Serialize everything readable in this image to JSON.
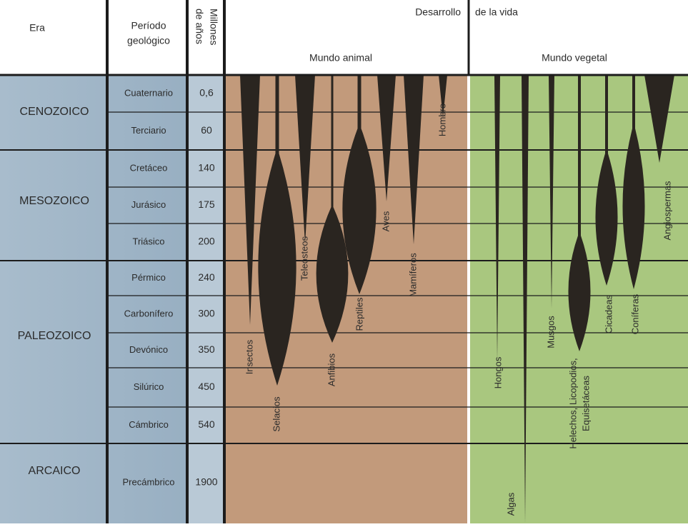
{
  "header": {
    "era": "Era",
    "periodo": [
      "Período",
      "geológico"
    ],
    "millones": [
      "Millones",
      "de años"
    ],
    "desarrollo": "Desarrollo",
    "de_la_vida": "de la vida",
    "mundo_animal": "Mundo animal",
    "mundo_vegetal": "Mundo vegetal"
  },
  "eras": [
    "CENOZOICO",
    "MESOZOICO",
    "PALEOZOICO",
    "ARCAICO"
  ],
  "periods": [
    {
      "name": "Cuaternario",
      "ma": "0,6"
    },
    {
      "name": "Terciario",
      "ma": "60"
    },
    {
      "name": "Cretáceo",
      "ma": "140"
    },
    {
      "name": "Jurásico",
      "ma": "175"
    },
    {
      "name": "Triásico",
      "ma": "200"
    },
    {
      "name": "Pérmico",
      "ma": "240"
    },
    {
      "name": "Carbonífero",
      "ma": "300"
    },
    {
      "name": "Devónico",
      "ma": "350"
    },
    {
      "name": "Silúrico",
      "ma": "450"
    },
    {
      "name": "Cámbrico",
      "ma": "540"
    },
    {
      "name": "Precámbrico",
      "ma": "1900"
    }
  ],
  "animal": [
    "Insectos",
    "Selacios",
    "Teleósteos",
    "Anfibios",
    "Reptiles",
    "Aves",
    "Mamíferos",
    "Hombre"
  ],
  "vegetal": [
    "Hongos",
    "Algas",
    "Musgos",
    [
      "Helechos, Licopodios,",
      "Equisetáceas"
    ],
    "Cicadeas",
    "Coníferas",
    "Angiospermas"
  ]
}
